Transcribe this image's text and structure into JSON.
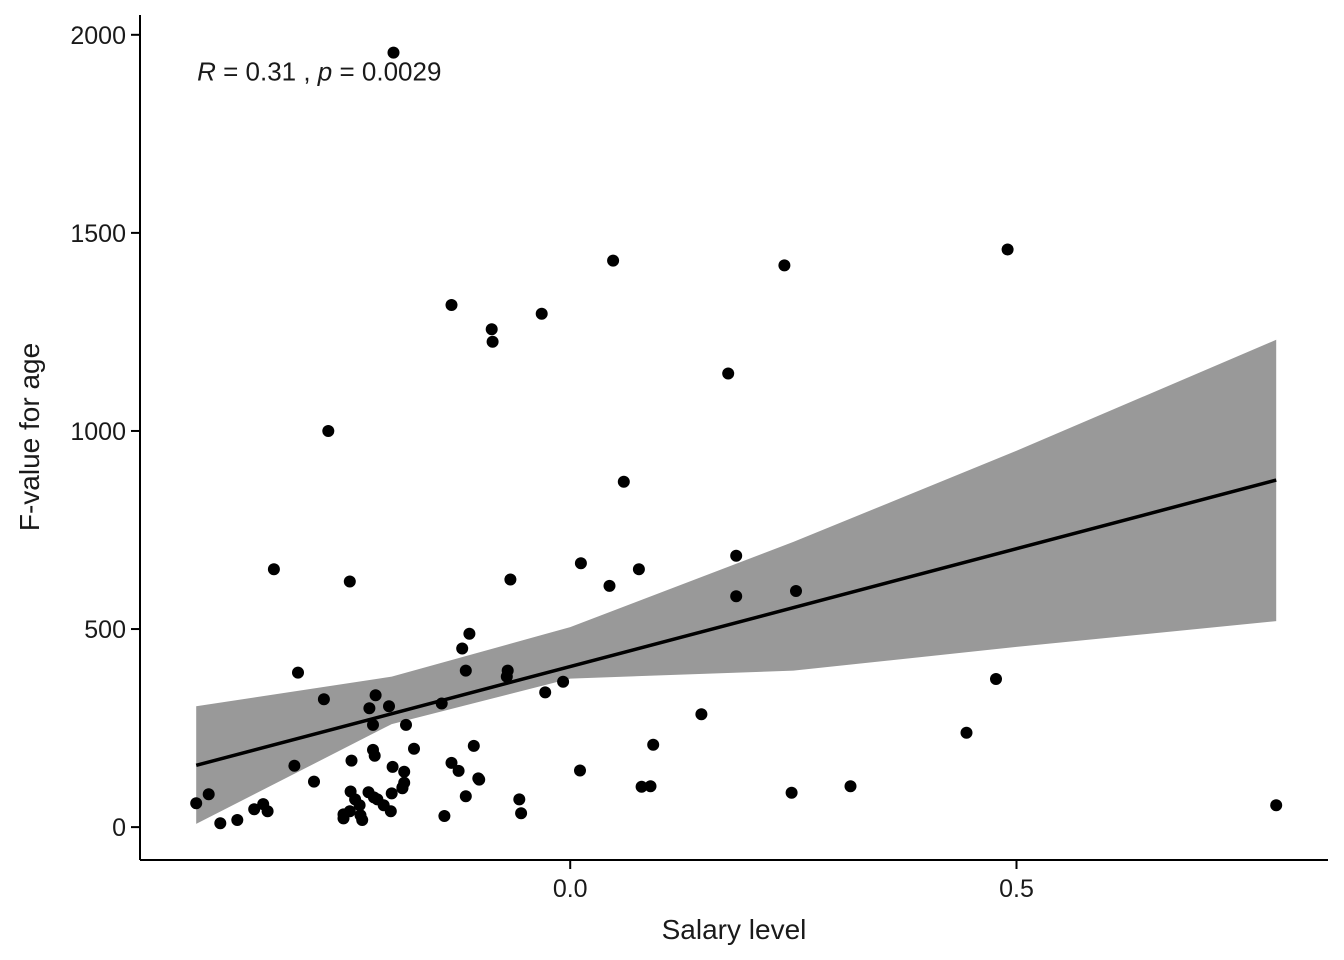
{
  "chart_data": {
    "type": "scatter",
    "title": "",
    "xlabel": "Salary level",
    "ylabel": "F-value for age",
    "xlim": [
      -0.482,
      0.849
    ],
    "ylim": [
      -83,
      2050
    ],
    "x_ticks": [
      0.0,
      0.5
    ],
    "x_tick_labels": [
      "0.0",
      "0.5"
    ],
    "y_ticks": [
      0,
      500,
      1000,
      1500,
      2000
    ],
    "y_tick_labels": [
      "0",
      "500",
      "1000",
      "1500",
      "2000"
    ],
    "grid": false,
    "annotation": {
      "r_symbol": "R",
      "r_text": " = 0.31 , ",
      "p_symbol": "p",
      "p_text": " = 0.0029",
      "position_x": -0.418,
      "position_y": 1885
    },
    "fit": {
      "x": [
        -0.419,
        0.791
      ],
      "y": [
        156,
        876
      ]
    },
    "confidence_band": {
      "x": [
        -0.419,
        -0.2,
        0.0,
        0.25,
        0.5,
        0.791
      ],
      "upper": [
        305,
        380,
        505,
        720,
        950,
        1230
      ],
      "lower": [
        8,
        260,
        375,
        395,
        455,
        520
      ]
    },
    "points": {
      "x": [
        -0.198,
        -0.133,
        -0.088,
        -0.087,
        -0.032,
        0.048,
        0.06,
        0.24,
        0.49,
        0.177,
        -0.271,
        0.012,
        0.077,
        0.186,
        0.186,
        0.253,
        0.044,
        -0.332,
        -0.247,
        -0.067,
        -0.113,
        -0.121,
        -0.305,
        -0.071,
        -0.117,
        -0.07,
        -0.028,
        -0.008,
        -0.218,
        -0.276,
        -0.144,
        -0.203,
        -0.225,
        -0.221,
        -0.184,
        0.147,
        0.444,
        0.477,
        -0.175,
        -0.221,
        -0.245,
        -0.108,
        -0.186,
        -0.219,
        -0.309,
        -0.133,
        -0.125,
        -0.199,
        -0.287,
        -0.103,
        -0.102,
        0.093,
        -0.117,
        0.011,
        0.08,
        0.09,
        0.314,
        0.248,
        -0.405,
        -0.419,
        -0.344,
        -0.354,
        -0.339,
        -0.392,
        -0.373,
        -0.246,
        -0.236,
        -0.241,
        -0.254,
        -0.247,
        -0.226,
        -0.22,
        -0.216,
        -0.209,
        -0.201,
        -0.2,
        -0.186,
        -0.188,
        -0.188,
        -0.235,
        -0.233,
        -0.254,
        -0.141,
        -0.055,
        -0.057,
        0.791
      ],
      "y": [
        1955,
        1318,
        1257,
        1225,
        1296,
        1430,
        872,
        1418,
        1458,
        1145,
        1000,
        666,
        651,
        685,
        583,
        596,
        609,
        651,
        620,
        625,
        488,
        451,
        390,
        380,
        395,
        395,
        340,
        367,
        333,
        323,
        312,
        305,
        300,
        258,
        258,
        285,
        238,
        374,
        198,
        195,
        168,
        205,
        140,
        180,
        155,
        162,
        142,
        152,
        115,
        123,
        120,
        208,
        78,
        143,
        102,
        103,
        103,
        87,
        83,
        60,
        58,
        45,
        40,
        10,
        18,
        90,
        55,
        70,
        32,
        40,
        88,
        75,
        70,
        55,
        40,
        85,
        112,
        98,
        100,
        30,
        18,
        22,
        28,
        35,
        70,
        55
      ]
    }
  }
}
